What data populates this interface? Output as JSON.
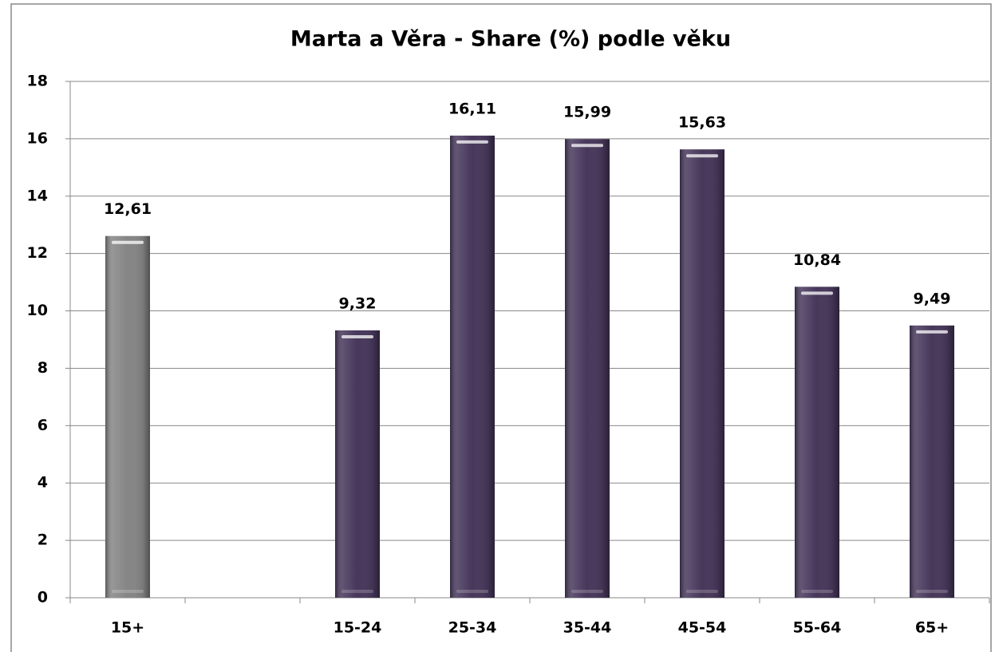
{
  "chart_data": {
    "type": "bar",
    "title": "Marta a Věra - Share (%) podle věku",
    "categories": [
      "15+",
      null,
      "15-24",
      "25-34",
      "35-44",
      "45-54",
      "55-64",
      "65+"
    ],
    "values": [
      12.61,
      null,
      9.32,
      16.11,
      15.99,
      15.63,
      10.84,
      9.49
    ],
    "value_labels": [
      "12,61",
      null,
      "9,32",
      "16,11",
      "15,99",
      "15,63",
      "10,84",
      "9,49"
    ],
    "colors": [
      "#858585",
      null,
      "#47375b",
      "#47375b",
      "#47375b",
      "#47375b",
      "#47375b",
      "#47375b"
    ],
    "ylim": [
      0,
      18
    ],
    "yticks": [
      0,
      2,
      4,
      6,
      8,
      10,
      12,
      14,
      16,
      18
    ],
    "grid": true
  }
}
